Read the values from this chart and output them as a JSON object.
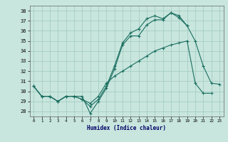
{
  "title": "",
  "xlabel": "Humidex (Indice chaleur)",
  "xlim": [
    -0.5,
    23.5
  ],
  "ylim": [
    27.5,
    38.5
  ],
  "yticks": [
    28,
    29,
    30,
    31,
    32,
    33,
    34,
    35,
    36,
    37,
    38
  ],
  "xticks": [
    0,
    1,
    2,
    3,
    4,
    5,
    6,
    7,
    8,
    9,
    10,
    11,
    12,
    13,
    14,
    15,
    16,
    17,
    18,
    19,
    20,
    21,
    22,
    23
  ],
  "bg_color": "#c8e6de",
  "grid_color": "#a0c8be",
  "line_color": "#1a6e60",
  "lines": [
    {
      "x": [
        0,
        1,
        2,
        3,
        4,
        5,
        6,
        7,
        8,
        9,
        10,
        11,
        12,
        13,
        14,
        15,
        16,
        17,
        18,
        19
      ],
      "y": [
        30.5,
        29.5,
        29.5,
        29.0,
        29.5,
        29.5,
        29.5,
        27.8,
        29.0,
        30.3,
        32.2,
        34.6,
        35.5,
        35.5,
        36.6,
        37.1,
        37.1,
        37.8,
        37.5,
        36.5
      ]
    },
    {
      "x": [
        0,
        1,
        2,
        3,
        4,
        5,
        6,
        7,
        8,
        9,
        10,
        11,
        12,
        13,
        14,
        15,
        16,
        17,
        18,
        19,
        20,
        21,
        22,
        23
      ],
      "y": [
        30.5,
        29.5,
        29.5,
        29.0,
        29.5,
        29.5,
        29.2,
        28.5,
        29.2,
        30.5,
        32.5,
        34.8,
        35.8,
        36.2,
        37.2,
        37.5,
        37.2,
        37.8,
        37.3,
        36.5,
        35.0,
        32.5,
        30.8,
        30.7
      ]
    },
    {
      "x": [
        0,
        1,
        2,
        3,
        4,
        5,
        6,
        7,
        8,
        9,
        10,
        11,
        12,
        13,
        14,
        15,
        16,
        17,
        18,
        19,
        20,
        21,
        22
      ],
      "y": [
        30.5,
        29.5,
        29.5,
        29.0,
        29.5,
        29.5,
        29.2,
        28.8,
        29.5,
        30.8,
        31.5,
        32.0,
        32.5,
        33.0,
        33.5,
        34.0,
        34.3,
        34.6,
        34.8,
        35.0,
        30.8,
        29.8,
        29.8
      ]
    }
  ]
}
